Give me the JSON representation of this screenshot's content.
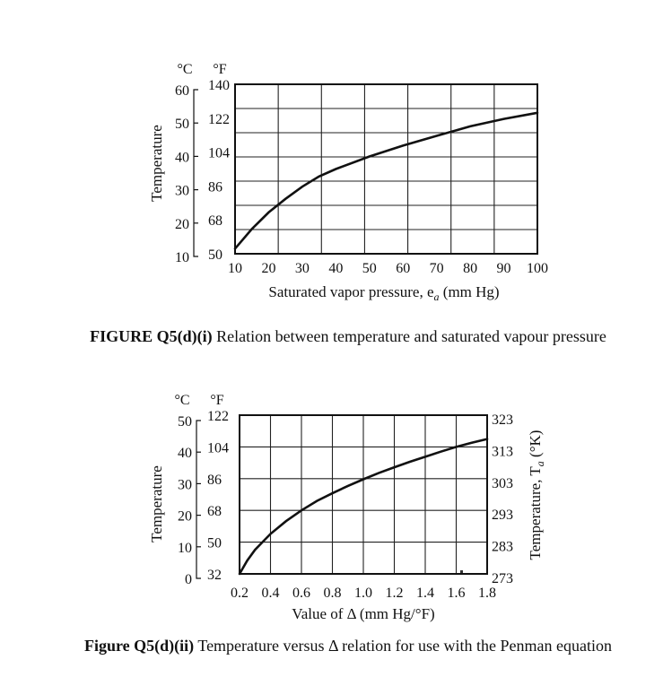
{
  "chart_data": [
    {
      "type": "line",
      "title": "FIGURE Q5(d)(i) Relation between temperature and saturated vapour pressure",
      "caption_label": "FIGURE Q5(d)(i)",
      "caption_text": "Relation between temperature and saturated vapour pressure",
      "xlabel": "Saturated vapor pressure, e",
      "xlabel_sub": "a",
      "xlabel_unit": " (mm Hg)",
      "ylabel": "Temperature",
      "unit_c": "°C",
      "unit_f": "°F",
      "xlim": [
        10,
        100
      ],
      "ylim": [
        10,
        60
      ],
      "x_ticks": [
        "10",
        "20",
        "30",
        "40",
        "50",
        "60",
        "70",
        "80",
        "90",
        "100"
      ],
      "y_ticks_c": [
        "60",
        "50",
        "40",
        "30",
        "20",
        "10"
      ],
      "y_ticks_f": [
        "140",
        "122",
        "104",
        "86",
        "68",
        "50"
      ],
      "grid": true,
      "series": [
        {
          "name": "Temperature vs saturated vapor pressure",
          "x": [
            10,
            15,
            20,
            25,
            30,
            35,
            40,
            50,
            60,
            70,
            80,
            90,
            100
          ],
          "y": [
            11.5,
            17.3,
            22.2,
            26.2,
            29.8,
            32.8,
            35.0,
            38.7,
            41.9,
            44.8,
            47.6,
            49.8,
            51.6
          ]
        }
      ]
    },
    {
      "type": "line",
      "title": "Figure Q5(d)(ii) Temperature versus Δ relation for use with the Penman equation",
      "caption_label": "Figure Q5(d)(ii)",
      "caption_text": "Temperature versus Δ relation for use with the Penman equation",
      "xlabel": "Value of Δ (mm Hg/°F)",
      "ylabel": "Temperature",
      "ylabel_right": "Temperature, T",
      "ylabel_right_sub": "a",
      "ylabel_right_unit": " (°K)",
      "unit_c": "°C",
      "unit_f": "°F",
      "xlim": [
        0.2,
        1.8
      ],
      "ylim": [
        0,
        50
      ],
      "x_ticks": [
        "0.2",
        "0.4",
        "0.6",
        "0.8",
        "1.0",
        "1.2",
        "1.4",
        "1.6",
        "1.8"
      ],
      "y_ticks_c": [
        "50",
        "40",
        "30",
        "20",
        "10",
        "0"
      ],
      "y_ticks_f": [
        "122",
        "104",
        "86",
        "68",
        "50",
        "32"
      ],
      "y_ticks_k": [
        "323",
        "313",
        "303",
        "293",
        "283",
        "273"
      ],
      "grid": true,
      "series": [
        {
          "name": "Temperature vs Δ",
          "x": [
            0.2,
            0.25,
            0.3,
            0.4,
            0.5,
            0.6,
            0.7,
            0.8,
            0.9,
            1.0,
            1.1,
            1.2,
            1.3,
            1.4,
            1.5,
            1.6,
            1.7,
            1.8
          ],
          "y": [
            0,
            4.2,
            7.6,
            12.6,
            16.6,
            20.0,
            23.0,
            25.4,
            27.7,
            29.8,
            31.8,
            33.6,
            35.3,
            36.9,
            38.5,
            40.0,
            41.3,
            42.5
          ]
        }
      ]
    }
  ]
}
